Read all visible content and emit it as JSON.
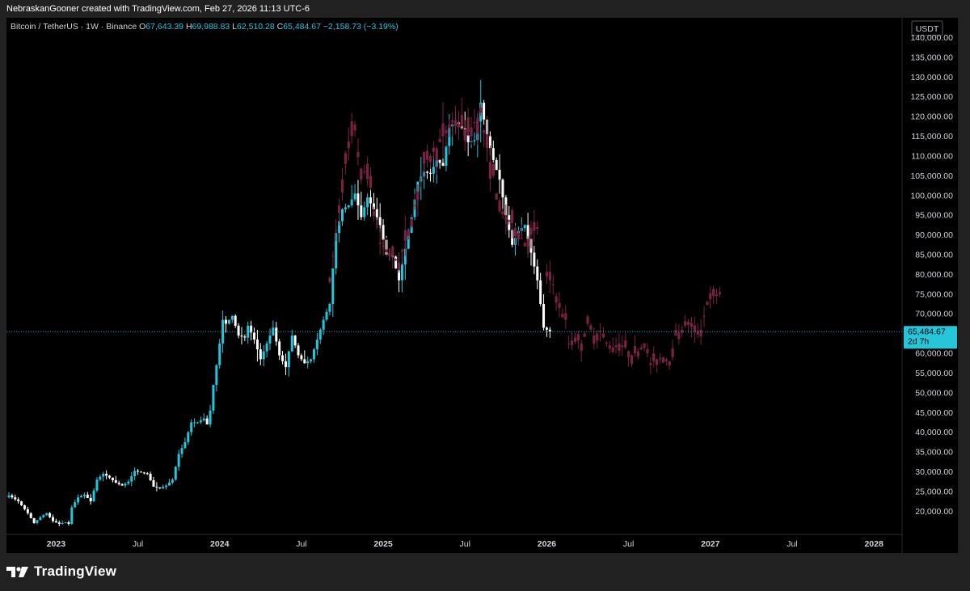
{
  "header": {
    "attribution": "NebraskanGooner created with TradingView.com, Feb 27, 2026 11:13 UTC-6"
  },
  "legend": {
    "symbol": "Bitcoin / TetherUS · 1W · Binance",
    "open_label": "O",
    "open": "67,643.39",
    "high_label": "H",
    "high": "69,988.83",
    "low_label": "L",
    "low": "62,510.28",
    "close_label": "C",
    "close": "65,484.67",
    "change": "−2,158.73 (−3.19%)"
  },
  "price_tag": {
    "price": "65,484.67",
    "countdown": "2d 7h"
  },
  "brand": {
    "name": "TradingView"
  },
  "colors": {
    "background": "#000000",
    "frame": "#212121",
    "up_candle": "#26c6da",
    "down_candle_body": "#ffffff",
    "projection": "#7a2244",
    "price_line": "#2e9bd6",
    "price_tag_bg": "#26c6da",
    "axis_text": "#d1d4dc"
  },
  "chart_data": {
    "type": "candlestick",
    "title": "Bitcoin / TetherUS · 1W · Binance",
    "currency": "USDT",
    "ylim": [
      15000,
      146000
    ],
    "y_ticks": [
      20000,
      25000,
      30000,
      35000,
      40000,
      45000,
      50000,
      55000,
      60000,
      65000,
      70000,
      75000,
      80000,
      85000,
      90000,
      95000,
      100000,
      105000,
      110000,
      115000,
      120000,
      125000,
      130000,
      135000,
      140000
    ],
    "x_labels": [
      {
        "label": "2023",
        "week": 15,
        "bold": true
      },
      {
        "label": "Jul",
        "week": 41,
        "bold": false
      },
      {
        "label": "2024",
        "week": 67,
        "bold": true
      },
      {
        "label": "Jul",
        "week": 93,
        "bold": false
      },
      {
        "label": "2025",
        "week": 119,
        "bold": true
      },
      {
        "label": "Jul",
        "week": 145,
        "bold": false
      },
      {
        "label": "2026",
        "week": 171,
        "bold": true
      },
      {
        "label": "Jul",
        "week": 197,
        "bold": false
      },
      {
        "label": "2027",
        "week": 223,
        "bold": true
      },
      {
        "label": "Jul",
        "week": 249,
        "bold": false
      },
      {
        "label": "2028",
        "week": 275,
        "bold": true
      }
    ],
    "last_close": 65484.67,
    "actual_anchors": [
      [
        0,
        24000
      ],
      [
        3,
        22500
      ],
      [
        6,
        19500
      ],
      [
        8,
        17000
      ],
      [
        10,
        18500
      ],
      [
        12,
        19500
      ],
      [
        14,
        17500
      ],
      [
        16,
        16800
      ],
      [
        18,
        17200
      ],
      [
        19,
        16800
      ],
      [
        20,
        21000
      ],
      [
        22,
        23500
      ],
      [
        24,
        24200
      ],
      [
        26,
        22500
      ],
      [
        28,
        28000
      ],
      [
        30,
        29500
      ],
      [
        32,
        28500
      ],
      [
        34,
        27200
      ],
      [
        36,
        26500
      ],
      [
        38,
        27500
      ],
      [
        40,
        30200
      ],
      [
        42,
        29800
      ],
      [
        44,
        29500
      ],
      [
        46,
        26200
      ],
      [
        48,
        25800
      ],
      [
        50,
        26500
      ],
      [
        52,
        28000
      ],
      [
        54,
        34500
      ],
      [
        56,
        37500
      ],
      [
        58,
        42500
      ],
      [
        60,
        42500
      ],
      [
        62,
        43500
      ],
      [
        63,
        42000
      ],
      [
        64,
        45500
      ],
      [
        65,
        52000
      ],
      [
        66,
        57000
      ],
      [
        67,
        62500
      ],
      [
        68,
        68500
      ],
      [
        69,
        67500
      ],
      [
        71,
        69500
      ],
      [
        73,
        64500
      ],
      [
        75,
        64000
      ],
      [
        76,
        67000
      ],
      [
        78,
        63500
      ],
      [
        80,
        58500
      ],
      [
        82,
        62500
      ],
      [
        84,
        66500
      ],
      [
        86,
        59500
      ],
      [
        88,
        56500
      ],
      [
        90,
        64500
      ],
      [
        92,
        59500
      ],
      [
        94,
        57500
      ],
      [
        96,
        58500
      ],
      [
        98,
        63500
      ],
      [
        100,
        68500
      ],
      [
        102,
        72500
      ],
      [
        104,
        90500
      ],
      [
        106,
        96500
      ],
      [
        108,
        97500
      ],
      [
        110,
        100500
      ],
      [
        112,
        94500
      ],
      [
        114,
        99500
      ],
      [
        116,
        96500
      ],
      [
        118,
        92500
      ],
      [
        120,
        85000
      ],
      [
        122,
        84500
      ],
      [
        124,
        78500
      ],
      [
        126,
        86500
      ],
      [
        128,
        94500
      ],
      [
        130,
        103500
      ],
      [
        132,
        106000
      ],
      [
        134,
        105500
      ],
      [
        136,
        109000
      ],
      [
        138,
        107500
      ],
      [
        140,
        117500
      ],
      [
        142,
        118500
      ],
      [
        144,
        117000
      ],
      [
        146,
        113500
      ],
      [
        148,
        114000
      ],
      [
        150,
        123500
      ],
      [
        152,
        115000
      ],
      [
        154,
        109000
      ],
      [
        156,
        104000
      ],
      [
        158,
        95000
      ],
      [
        160,
        87500
      ],
      [
        162,
        91000
      ],
      [
        164,
        92500
      ],
      [
        166,
        85500
      ],
      [
        168,
        78500
      ],
      [
        170,
        66500
      ],
      [
        172,
        65500
      ]
    ],
    "projection_anchors": [
      [
        171,
        79500
      ],
      [
        173,
        77500
      ],
      [
        175,
        71500
      ],
      [
        177,
        68500
      ],
      [
        178,
        62500
      ],
      [
        180,
        64000
      ],
      [
        182,
        62500
      ],
      [
        184,
        67500
      ],
      [
        186,
        64500
      ],
      [
        188,
        65500
      ],
      [
        190,
        62500
      ],
      [
        192,
        61500
      ],
      [
        194,
        62500
      ],
      [
        196,
        61500
      ],
      [
        198,
        59500
      ],
      [
        200,
        60500
      ],
      [
        202,
        62500
      ],
      [
        204,
        57500
      ],
      [
        206,
        58500
      ],
      [
        208,
        59000
      ],
      [
        210,
        58000
      ],
      [
        212,
        64500
      ],
      [
        214,
        66000
      ],
      [
        216,
        68000
      ],
      [
        218,
        65500
      ],
      [
        220,
        66000
      ],
      [
        222,
        73000
      ],
      [
        224,
        74500
      ],
      [
        226,
        75500
      ]
    ]
  }
}
